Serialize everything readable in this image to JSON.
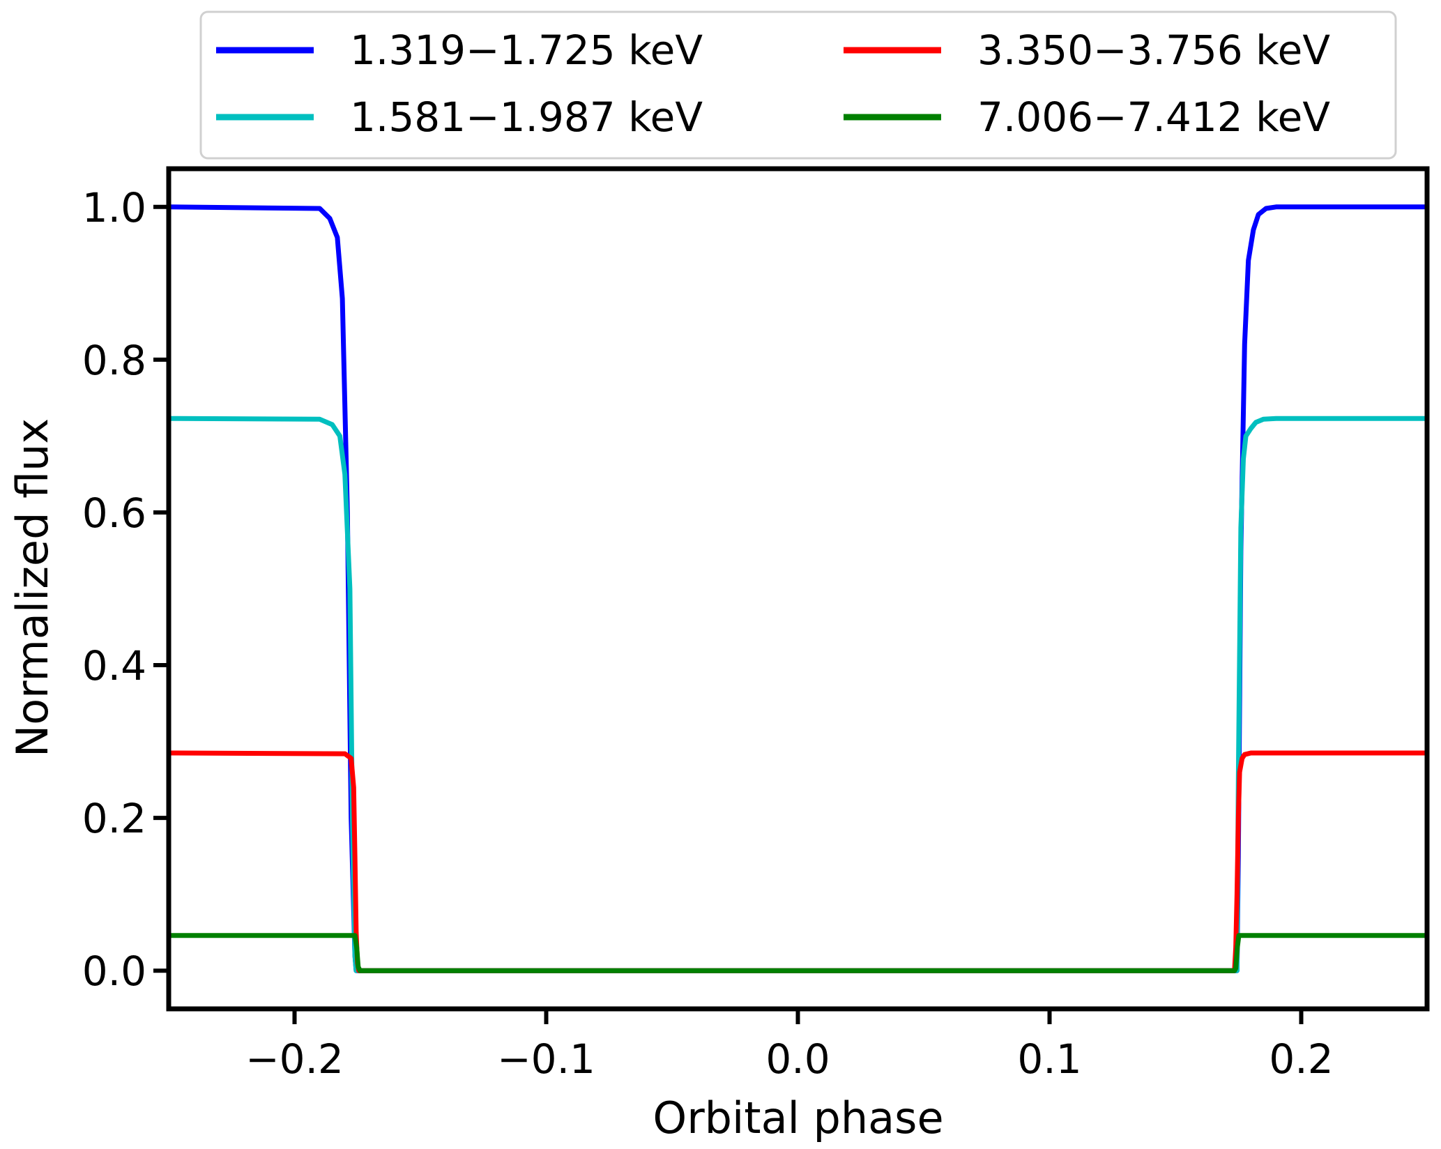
{
  "chart_data": {
    "type": "line",
    "xlabel": "Orbital phase",
    "ylabel": "Normalized flux",
    "xlim": [
      -0.25,
      0.25
    ],
    "ylim": [
      -0.05,
      1.05
    ],
    "xticks": [
      -0.2,
      -0.1,
      0.0,
      0.1,
      0.2
    ],
    "xtick_labels": [
      "−0.2",
      "−0.1",
      "0.0",
      "0.1",
      "0.2"
    ],
    "yticks": [
      0.0,
      0.2,
      0.4,
      0.6,
      0.8,
      1.0
    ],
    "ytick_labels": [
      "0.0",
      "0.2",
      "0.4",
      "0.6",
      "0.8",
      "1.0"
    ],
    "grid": false,
    "legend_position": "top, above plot, 2 columns",
    "series": [
      {
        "name": "1.319−1.725 keV",
        "color": "#0000ff",
        "x": [
          -0.25,
          -0.19,
          -0.186,
          -0.183,
          -0.181,
          -0.179,
          -0.1775,
          -0.176,
          -0.1755,
          0.1745,
          0.175,
          0.176,
          0.1775,
          0.179,
          0.181,
          0.183,
          0.186,
          0.19,
          0.25
        ],
        "y": [
          1.0,
          0.998,
          0.985,
          0.96,
          0.88,
          0.6,
          0.2,
          0.02,
          0.0,
          0.0,
          0.15,
          0.55,
          0.82,
          0.93,
          0.97,
          0.99,
          0.998,
          1.0,
          1.0
        ]
      },
      {
        "name": "1.581−1.987 keV",
        "color": "#00bfbf",
        "x": [
          -0.25,
          -0.19,
          -0.185,
          -0.182,
          -0.18,
          -0.178,
          -0.177,
          -0.176,
          -0.1755,
          0.1745,
          0.175,
          0.176,
          0.177,
          0.178,
          0.18,
          0.182,
          0.185,
          0.19,
          0.25
        ],
        "y": [
          0.723,
          0.722,
          0.715,
          0.7,
          0.65,
          0.5,
          0.2,
          0.02,
          0.0,
          0.0,
          0.25,
          0.58,
          0.67,
          0.7,
          0.71,
          0.718,
          0.722,
          0.723,
          0.723
        ]
      },
      {
        "name": "3.350−3.756 keV",
        "color": "#ff0000",
        "x": [
          -0.25,
          -0.18,
          -0.1775,
          -0.1765,
          -0.176,
          -0.1755,
          -0.175,
          -0.1745,
          0.1735,
          0.174,
          0.1745,
          0.175,
          0.1755,
          0.1765,
          0.1775,
          0.18,
          0.25
        ],
        "y": [
          0.285,
          0.284,
          0.278,
          0.24,
          0.15,
          0.05,
          0.01,
          0.0,
          0.0,
          0.03,
          0.1,
          0.2,
          0.26,
          0.278,
          0.283,
          0.285,
          0.285
        ]
      },
      {
        "name": "7.006−7.412 keV",
        "color": "#008000",
        "x": [
          -0.25,
          -0.176,
          -0.1753,
          -0.1747,
          -0.174,
          0.1735,
          0.174,
          0.1746,
          0.1752,
          0.25
        ],
        "y": [
          0.046,
          0.046,
          0.03,
          0.005,
          0.0,
          0.0,
          0.003,
          0.03,
          0.046,
          0.046
        ]
      }
    ]
  }
}
